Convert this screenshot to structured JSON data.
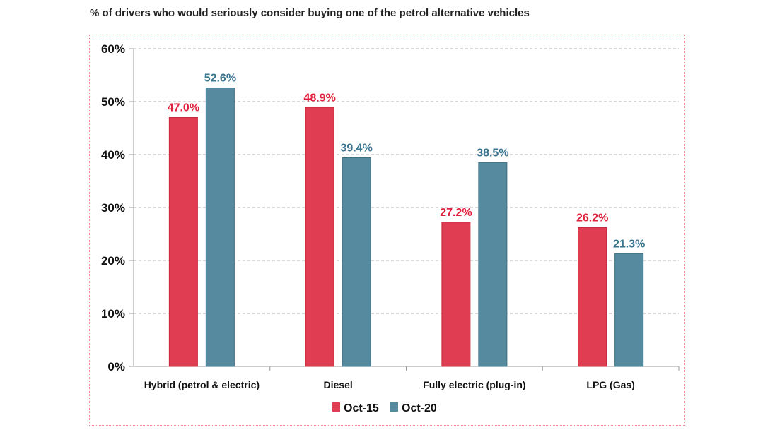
{
  "chart_data": {
    "type": "bar",
    "title": "% of drivers who would seriously consider buying one of the petrol alternative vehicles",
    "categories": [
      "Hybrid (petrol & electric)",
      "Diesel",
      "Fully electric (plug-in)",
      "LPG (Gas)"
    ],
    "series": [
      {
        "name": "Oct-15",
        "values": [
          47.0,
          48.9,
          27.2,
          26.2
        ],
        "labels": [
          "47.0%",
          "48.9%",
          "27.2%",
          "26.2%"
        ],
        "color": "#e03c52",
        "label_color": "#e0203c"
      },
      {
        "name": "Oct-20",
        "values": [
          52.6,
          39.4,
          38.5,
          21.3
        ],
        "labels": [
          "52.6%",
          "39.4%",
          "38.5%",
          "21.3%"
        ],
        "color": "#568a9e",
        "label_color": "#3a7590"
      }
    ],
    "ylim": [
      0,
      60
    ],
    "yticks": [
      "0%",
      "10%",
      "20%",
      "30%",
      "40%",
      "50%",
      "60%"
    ],
    "grid": true,
    "legend": "bottom"
  }
}
